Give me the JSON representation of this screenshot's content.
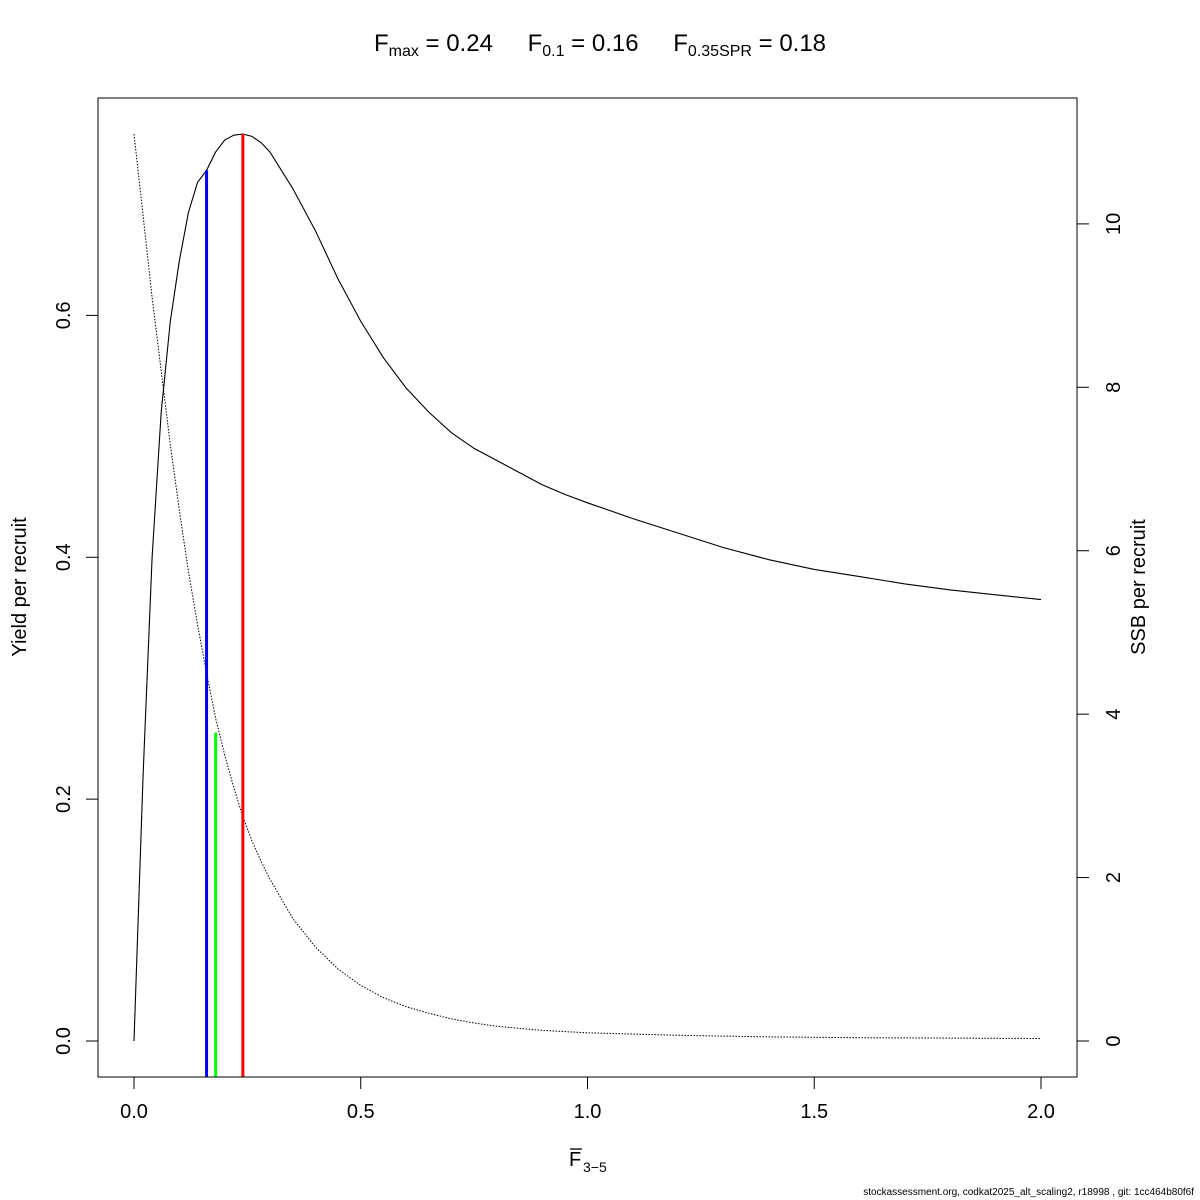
{
  "title": {
    "fmax": {
      "main": "F",
      "sub": "max",
      "eq": " = 0.24"
    },
    "f01": {
      "main": "F",
      "sub": "0.1",
      "eq": " = 0.16"
    },
    "fspr": {
      "main": "F",
      "sub": "0.35SPR",
      "eq": " = 0.18"
    }
  },
  "footer": "stockassessment.org, codkat2025_alt_scaling2, r18998 , git: 1cc464b80f6f",
  "chart_data": {
    "type": "line",
    "xlabel": {
      "main": "F",
      "sub": "3−5",
      "overline": true
    },
    "ylabel": "Yield per recruit",
    "y2label": "SSB per recruit",
    "xlim": [
      0,
      2
    ],
    "ylim": [
      0,
      0.75
    ],
    "y2lim": [
      0,
      11.1
    ],
    "xticks": [
      "0.0",
      "0.5",
      "1.0",
      "1.5",
      "2.0"
    ],
    "yticks": [
      "0.0",
      "0.2",
      "0.4",
      "0.6"
    ],
    "y2ticks": [
      "0",
      "2",
      "4",
      "6",
      "8",
      "10"
    ],
    "series": [
      {
        "role": "yield",
        "axis": "left",
        "style": "solid",
        "color": "#000000",
        "x": [
          0,
          0.02,
          0.04,
          0.06,
          0.08,
          0.1,
          0.12,
          0.14,
          0.16,
          0.18,
          0.2,
          0.22,
          0.24,
          0.26,
          0.28,
          0.3,
          0.35,
          0.4,
          0.45,
          0.5,
          0.55,
          0.6,
          0.65,
          0.7,
          0.75,
          0.8,
          0.85,
          0.9,
          0.95,
          1.0,
          1.1,
          1.2,
          1.3,
          1.4,
          1.5,
          1.6,
          1.7,
          1.8,
          1.9,
          2.0
        ],
        "y": [
          0,
          0.22,
          0.4,
          0.52,
          0.595,
          0.645,
          0.685,
          0.71,
          0.72,
          0.735,
          0.745,
          0.749,
          0.75,
          0.748,
          0.743,
          0.735,
          0.705,
          0.67,
          0.63,
          0.595,
          0.565,
          0.54,
          0.52,
          0.503,
          0.49,
          0.48,
          0.47,
          0.46,
          0.452,
          0.445,
          0.432,
          0.42,
          0.408,
          0.398,
          0.39,
          0.384,
          0.378,
          0.373,
          0.369,
          0.365
        ]
      },
      {
        "role": "ssb",
        "axis": "right",
        "style": "dotted",
        "color": "#000000",
        "x": [
          0,
          0.02,
          0.04,
          0.06,
          0.08,
          0.1,
          0.12,
          0.14,
          0.16,
          0.18,
          0.2,
          0.22,
          0.24,
          0.26,
          0.28,
          0.3,
          0.35,
          0.4,
          0.45,
          0.5,
          0.55,
          0.6,
          0.65,
          0.7,
          0.75,
          0.8,
          0.9,
          1.0,
          1.2,
          1.4,
          1.6,
          1.8,
          2.0
        ],
        "y": [
          11.1,
          10.1,
          9.1,
          8.2,
          7.3,
          6.5,
          5.75,
          5.1,
          4.5,
          3.95,
          3.5,
          3.1,
          2.75,
          2.45,
          2.2,
          1.98,
          1.5,
          1.15,
          0.88,
          0.68,
          0.53,
          0.42,
          0.34,
          0.27,
          0.22,
          0.18,
          0.13,
          0.1,
          0.07,
          0.05,
          0.04,
          0.035,
          0.03
        ]
      }
    ],
    "reference_lines": [
      {
        "name": "F0.1",
        "x": 0.16,
        "y_top": 0.72,
        "color": "#0000ff"
      },
      {
        "name": "F0.35SPR",
        "x": 0.18,
        "y_top": 0.255,
        "color": "#00ff00"
      },
      {
        "name": "Fmax",
        "x": 0.24,
        "y_top": 0.75,
        "color": "#ff0000"
      }
    ],
    "grid": false,
    "legend": "none"
  }
}
